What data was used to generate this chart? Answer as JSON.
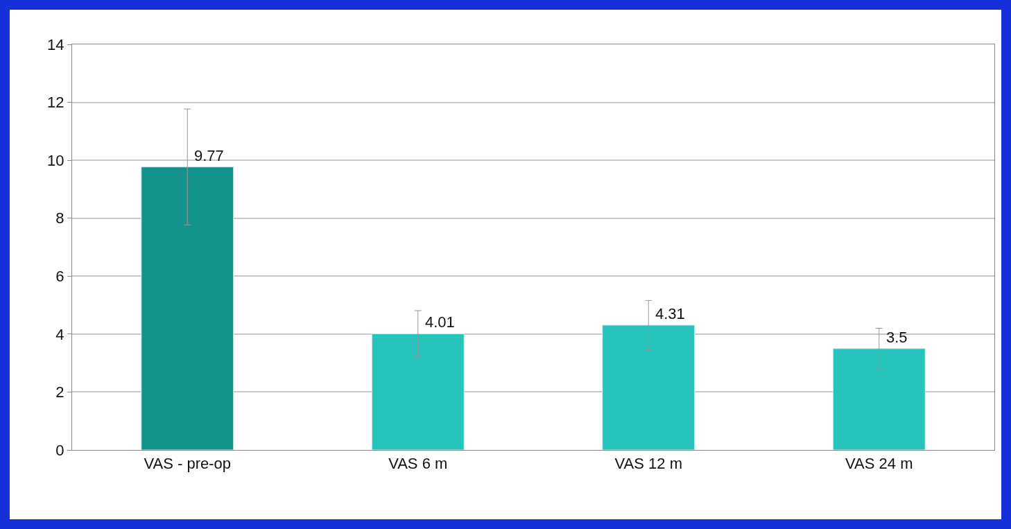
{
  "chart_data": {
    "type": "bar",
    "categories": [
      "VAS - pre-op",
      "VAS 6 m",
      "VAS 12 m",
      "VAS 24 m"
    ],
    "values": [
      9.77,
      4.01,
      4.31,
      3.5
    ],
    "colors": [
      "#14938d",
      "#27c3bd",
      "#27c3bd",
      "#27c3bd"
    ],
    "errors": [
      2.0,
      0.8,
      0.85,
      0.7
    ],
    "data_labels": true,
    "ylim": [
      0,
      14
    ],
    "yticks": [
      0,
      2,
      4,
      6,
      8,
      10,
      12,
      14
    ],
    "grid": "y",
    "legend": false
  }
}
